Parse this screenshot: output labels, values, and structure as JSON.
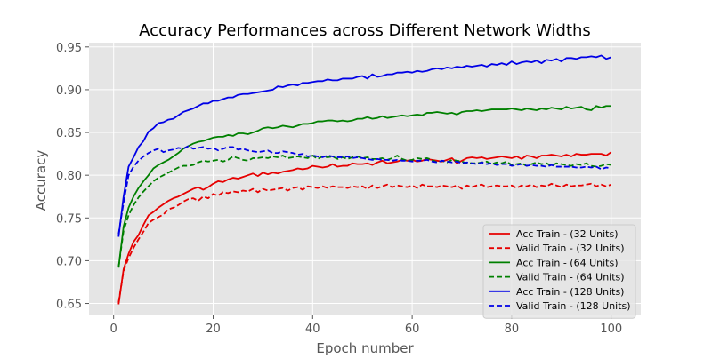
{
  "chart_data": {
    "type": "line",
    "title": "Accuracy Performances across Different Network Widths",
    "xlabel": "Epoch number",
    "ylabel": "Accuracy",
    "xlim": [
      -4.95,
      105.95
    ],
    "ylim": [
      0.636,
      0.955
    ],
    "x_ticks": [
      0,
      20,
      40,
      60,
      80,
      100
    ],
    "y_ticks": [
      0.65,
      0.7,
      0.75,
      0.8,
      0.85,
      0.9,
      0.95
    ],
    "grid": true,
    "legend_position": "lower-right",
    "style": "ggplot",
    "x": [
      1,
      2,
      3,
      4,
      5,
      6,
      7,
      8,
      9,
      10,
      11,
      12,
      13,
      14,
      15,
      16,
      17,
      18,
      19,
      20,
      21,
      22,
      23,
      24,
      25,
      26,
      27,
      28,
      29,
      30,
      31,
      32,
      33,
      34,
      35,
      36,
      37,
      38,
      39,
      40,
      41,
      42,
      43,
      44,
      45,
      46,
      47,
      48,
      49,
      50,
      51,
      52,
      53,
      54,
      55,
      56,
      57,
      58,
      59,
      60,
      61,
      62,
      63,
      64,
      65,
      66,
      67,
      68,
      69,
      70,
      71,
      72,
      73,
      74,
      75,
      76,
      77,
      78,
      79,
      80,
      81,
      82,
      83,
      84,
      85,
      86,
      87,
      88,
      89,
      90,
      91,
      92,
      93,
      94,
      95,
      96,
      97,
      98,
      99,
      100
    ],
    "series": [
      {
        "name": "Acc Train - (32 Units)",
        "color": "#e60000",
        "dashed": false,
        "values": [
          0.649,
          0.69,
          0.708,
          0.722,
          0.73,
          0.742,
          0.753,
          0.757,
          0.762,
          0.766,
          0.77,
          0.773,
          0.775,
          0.778,
          0.781,
          0.784,
          0.786,
          0.783,
          0.786,
          0.79,
          0.793,
          0.792,
          0.795,
          0.797,
          0.796,
          0.798,
          0.8,
          0.802,
          0.799,
          0.803,
          0.801,
          0.803,
          0.802,
          0.804,
          0.805,
          0.806,
          0.808,
          0.807,
          0.808,
          0.811,
          0.81,
          0.809,
          0.81,
          0.813,
          0.81,
          0.811,
          0.811,
          0.814,
          0.813,
          0.813,
          0.814,
          0.812,
          0.815,
          0.817,
          0.814,
          0.815,
          0.816,
          0.818,
          0.817,
          0.818,
          0.816,
          0.817,
          0.819,
          0.818,
          0.817,
          0.816,
          0.818,
          0.82,
          0.814,
          0.817,
          0.82,
          0.821,
          0.82,
          0.821,
          0.819,
          0.82,
          0.821,
          0.822,
          0.821,
          0.82,
          0.822,
          0.819,
          0.823,
          0.822,
          0.82,
          0.823,
          0.823,
          0.824,
          0.823,
          0.822,
          0.824,
          0.822,
          0.825,
          0.824,
          0.824,
          0.825,
          0.825,
          0.825,
          0.823,
          0.827
        ]
      },
      {
        "name": "Valid Train - (32 Units)",
        "color": "#e60000",
        "dashed": true,
        "values": [
          0.651,
          0.688,
          0.703,
          0.715,
          0.725,
          0.734,
          0.744,
          0.748,
          0.751,
          0.754,
          0.76,
          0.762,
          0.765,
          0.769,
          0.772,
          0.773,
          0.77,
          0.775,
          0.773,
          0.778,
          0.776,
          0.78,
          0.779,
          0.781,
          0.78,
          0.782,
          0.781,
          0.784,
          0.78,
          0.784,
          0.782,
          0.783,
          0.784,
          0.785,
          0.782,
          0.785,
          0.786,
          0.783,
          0.787,
          0.786,
          0.785,
          0.787,
          0.785,
          0.787,
          0.786,
          0.786,
          0.785,
          0.787,
          0.786,
          0.787,
          0.784,
          0.788,
          0.785,
          0.787,
          0.789,
          0.786,
          0.788,
          0.787,
          0.786,
          0.788,
          0.785,
          0.789,
          0.787,
          0.787,
          0.786,
          0.788,
          0.787,
          0.786,
          0.788,
          0.784,
          0.788,
          0.786,
          0.788,
          0.789,
          0.786,
          0.787,
          0.788,
          0.787,
          0.787,
          0.788,
          0.785,
          0.788,
          0.787,
          0.789,
          0.786,
          0.788,
          0.787,
          0.79,
          0.788,
          0.786,
          0.789,
          0.787,
          0.788,
          0.788,
          0.789,
          0.79,
          0.787,
          0.789,
          0.787,
          0.789
        ]
      },
      {
        "name": "Acc Train - (64 Units)",
        "color": "#008000",
        "dashed": false,
        "values": [
          0.692,
          0.74,
          0.762,
          0.775,
          0.785,
          0.793,
          0.8,
          0.808,
          0.812,
          0.815,
          0.818,
          0.822,
          0.826,
          0.831,
          0.834,
          0.837,
          0.839,
          0.84,
          0.842,
          0.844,
          0.845,
          0.845,
          0.847,
          0.846,
          0.849,
          0.849,
          0.848,
          0.85,
          0.852,
          0.855,
          0.856,
          0.855,
          0.856,
          0.858,
          0.857,
          0.856,
          0.858,
          0.86,
          0.86,
          0.861,
          0.863,
          0.863,
          0.864,
          0.864,
          0.863,
          0.864,
          0.863,
          0.864,
          0.866,
          0.866,
          0.868,
          0.866,
          0.867,
          0.869,
          0.867,
          0.868,
          0.869,
          0.87,
          0.869,
          0.87,
          0.871,
          0.87,
          0.873,
          0.873,
          0.874,
          0.873,
          0.872,
          0.873,
          0.871,
          0.874,
          0.875,
          0.875,
          0.876,
          0.875,
          0.876,
          0.877,
          0.877,
          0.877,
          0.877,
          0.878,
          0.877,
          0.876,
          0.878,
          0.877,
          0.876,
          0.878,
          0.877,
          0.879,
          0.878,
          0.877,
          0.88,
          0.878,
          0.879,
          0.88,
          0.877,
          0.876,
          0.881,
          0.879,
          0.881,
          0.881
        ]
      },
      {
        "name": "Valid Train - (64 Units)",
        "color": "#008000",
        "dashed": true,
        "values": [
          0.692,
          0.735,
          0.753,
          0.765,
          0.774,
          0.781,
          0.787,
          0.793,
          0.797,
          0.8,
          0.803,
          0.806,
          0.809,
          0.811,
          0.811,
          0.812,
          0.815,
          0.817,
          0.816,
          0.817,
          0.818,
          0.816,
          0.818,
          0.822,
          0.82,
          0.818,
          0.817,
          0.82,
          0.82,
          0.821,
          0.82,
          0.822,
          0.821,
          0.823,
          0.82,
          0.821,
          0.822,
          0.821,
          0.82,
          0.823,
          0.819,
          0.822,
          0.821,
          0.822,
          0.819,
          0.821,
          0.819,
          0.821,
          0.822,
          0.82,
          0.821,
          0.819,
          0.819,
          0.82,
          0.818,
          0.82,
          0.823,
          0.819,
          0.817,
          0.818,
          0.82,
          0.819,
          0.82,
          0.818,
          0.815,
          0.817,
          0.815,
          0.818,
          0.817,
          0.816,
          0.814,
          0.814,
          0.814,
          0.815,
          0.816,
          0.813,
          0.815,
          0.814,
          0.816,
          0.812,
          0.813,
          0.814,
          0.811,
          0.813,
          0.815,
          0.813,
          0.814,
          0.811,
          0.814,
          0.813,
          0.812,
          0.811,
          0.813,
          0.812,
          0.814,
          0.811,
          0.81,
          0.811,
          0.813,
          0.812
        ]
      },
      {
        "name": "Acc Train - (128 Units)",
        "color": "#0000e6",
        "dashed": false,
        "values": [
          0.728,
          0.775,
          0.81,
          0.821,
          0.833,
          0.84,
          0.851,
          0.855,
          0.861,
          0.862,
          0.865,
          0.866,
          0.87,
          0.874,
          0.876,
          0.878,
          0.881,
          0.884,
          0.884,
          0.887,
          0.887,
          0.889,
          0.891,
          0.891,
          0.894,
          0.895,
          0.895,
          0.896,
          0.897,
          0.898,
          0.899,
          0.9,
          0.904,
          0.903,
          0.905,
          0.906,
          0.905,
          0.908,
          0.908,
          0.909,
          0.91,
          0.91,
          0.912,
          0.911,
          0.911,
          0.913,
          0.913,
          0.913,
          0.915,
          0.916,
          0.913,
          0.918,
          0.915,
          0.916,
          0.918,
          0.918,
          0.92,
          0.92,
          0.921,
          0.92,
          0.922,
          0.921,
          0.922,
          0.924,
          0.925,
          0.924,
          0.926,
          0.925,
          0.927,
          0.926,
          0.928,
          0.927,
          0.928,
          0.929,
          0.927,
          0.93,
          0.929,
          0.931,
          0.929,
          0.933,
          0.93,
          0.932,
          0.933,
          0.932,
          0.934,
          0.931,
          0.935,
          0.934,
          0.936,
          0.933,
          0.937,
          0.937,
          0.936,
          0.938,
          0.938,
          0.939,
          0.938,
          0.94,
          0.936,
          0.938
        ]
      },
      {
        "name": "Valid Train - (128 Units)",
        "color": "#0000e6",
        "dashed": true,
        "values": [
          0.731,
          0.768,
          0.8,
          0.81,
          0.817,
          0.822,
          0.826,
          0.829,
          0.831,
          0.827,
          0.829,
          0.83,
          0.832,
          0.831,
          0.834,
          0.831,
          0.832,
          0.833,
          0.831,
          0.832,
          0.829,
          0.831,
          0.833,
          0.833,
          0.83,
          0.831,
          0.829,
          0.828,
          0.827,
          0.828,
          0.829,
          0.826,
          0.826,
          0.828,
          0.827,
          0.826,
          0.824,
          0.825,
          0.822,
          0.823,
          0.822,
          0.821,
          0.823,
          0.822,
          0.821,
          0.821,
          0.822,
          0.82,
          0.821,
          0.82,
          0.819,
          0.818,
          0.819,
          0.818,
          0.818,
          0.817,
          0.818,
          0.817,
          0.817,
          0.816,
          0.817,
          0.817,
          0.818,
          0.816,
          0.815,
          0.817,
          0.816,
          0.815,
          0.816,
          0.814,
          0.815,
          0.814,
          0.813,
          0.815,
          0.813,
          0.814,
          0.812,
          0.813,
          0.813,
          0.811,
          0.812,
          0.813,
          0.811,
          0.812,
          0.811,
          0.811,
          0.81,
          0.812,
          0.81,
          0.81,
          0.81,
          0.81,
          0.809,
          0.809,
          0.81,
          0.809,
          0.81,
          0.807,
          0.809,
          0.808
        ]
      }
    ]
  }
}
